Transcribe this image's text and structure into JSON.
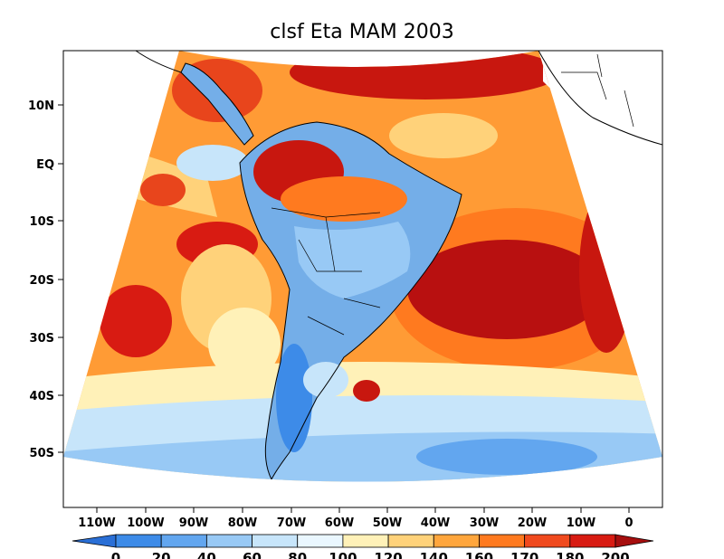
{
  "title": "clsf Eta MAM 2003",
  "lat_labels": [
    "10N",
    "EQ",
    "10S",
    "20S",
    "30S",
    "40S",
    "50S"
  ],
  "lon_labels": [
    "110W",
    "100W",
    "90W",
    "80W",
    "70W",
    "60W",
    "50W",
    "40W",
    "30W",
    "20W",
    "10W",
    "0"
  ],
  "colorbar": {
    "levels": [
      "0",
      "20",
      "40",
      "60",
      "80",
      "100",
      "120",
      "140",
      "160",
      "170",
      "180",
      "200"
    ],
    "colors": [
      "#2a6fd6",
      "#3d8be8",
      "#62a6ef",
      "#98c9f5",
      "#c7e5fa",
      "#eaf7ff",
      "#fff1b8",
      "#ffd27a",
      "#ffa63d",
      "#ff7a1f",
      "#f04a1e",
      "#d81b12",
      "#a60e0e"
    ]
  },
  "map": {
    "variable": "clsf",
    "model": "Eta",
    "season": "MAM",
    "year": "2003",
    "ocean_color": "#ff9b35",
    "land_color": "#74aee8"
  }
}
